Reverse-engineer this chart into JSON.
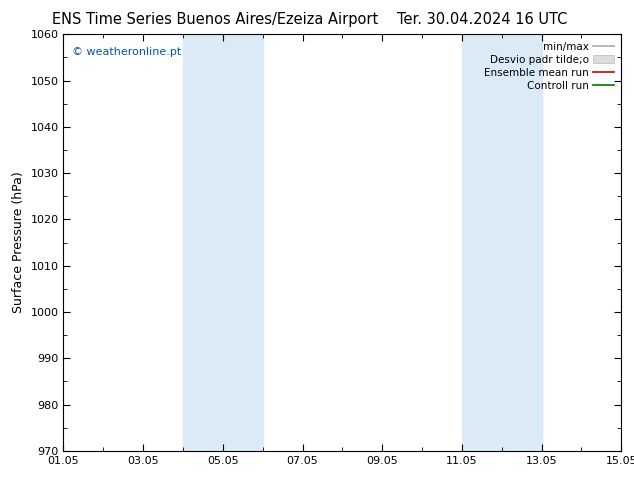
{
  "title_left": "ENS Time Series Buenos Aires/Ezeiza Airport",
  "title_right": "Ter. 30.04.2024 16 UTC",
  "ylabel": "Surface Pressure (hPa)",
  "ylim": [
    970,
    1060
  ],
  "yticks": [
    970,
    980,
    990,
    1000,
    1010,
    1020,
    1030,
    1040,
    1050,
    1060
  ],
  "xlim_start": 0,
  "xlim_end": 14,
  "xtick_positions": [
    0,
    2,
    4,
    6,
    8,
    10,
    12,
    14
  ],
  "xtick_labels": [
    "01.05",
    "03.05",
    "05.05",
    "07.05",
    "09.05",
    "11.05",
    "13.05",
    "15.05"
  ],
  "background_color": "#ffffff",
  "plot_bg_color": "#ffffff",
  "shaded_bands": [
    {
      "x_start": 3.0,
      "x_end": 5.0
    },
    {
      "x_start": 10.0,
      "x_end": 12.0
    }
  ],
  "shaded_color": "#dbeaf7",
  "copyright_text": "© weatheronline.pt",
  "copyright_color": "#0055bb",
  "legend_items": [
    {
      "label": "min/max",
      "color": "#aaaaaa",
      "lw": 1.2,
      "type": "line"
    },
    {
      "label": "Desvio padr tilde;o",
      "color": "#dddddd",
      "lw": 8,
      "type": "patch"
    },
    {
      "label": "Ensemble mean run",
      "color": "#cc0000",
      "lw": 1.2,
      "type": "line"
    },
    {
      "label": "Controll run",
      "color": "#007700",
      "lw": 1.2,
      "type": "line"
    }
  ],
  "title_fontsize": 10.5,
  "tick_fontsize": 8,
  "ylabel_fontsize": 9,
  "legend_fontsize": 7.5
}
